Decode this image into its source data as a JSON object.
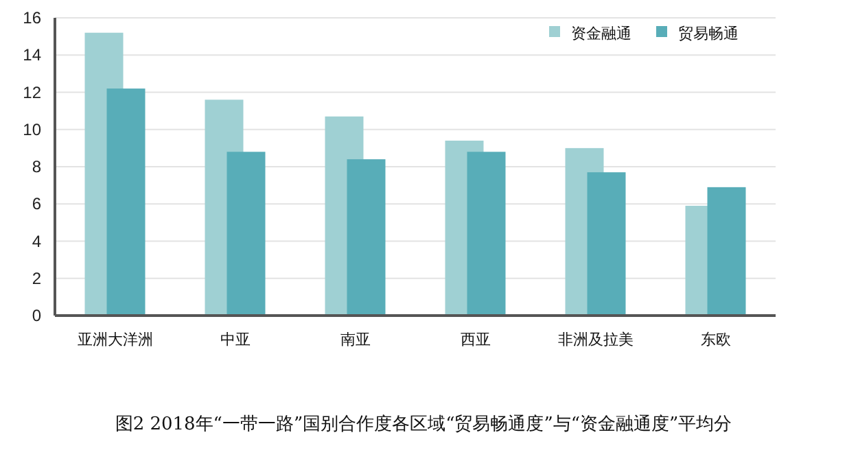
{
  "chart_data": {
    "type": "bar",
    "categories": [
      "亚洲大洋洲",
      "中亚",
      "南亚",
      "西亚",
      "非洲及拉美",
      "东欧"
    ],
    "series": [
      {
        "name": "资金融通",
        "color": "#9fd0d3",
        "values": [
          15.2,
          11.6,
          10.7,
          9.4,
          9.0,
          5.9
        ]
      },
      {
        "name": "贸易畅通",
        "color": "#58adb8",
        "values": [
          12.2,
          8.8,
          8.4,
          8.8,
          7.7,
          6.9
        ]
      }
    ],
    "ylim": [
      0,
      16
    ],
    "yticks": [
      0,
      2,
      4,
      6,
      8,
      10,
      12,
      14,
      16
    ],
    "grid": "y",
    "legend": "top right",
    "annotations": [
      "图2 2018年“一带一路”国别合作度各区域“贸易畅通度”与“资金融通度”平均分"
    ]
  }
}
